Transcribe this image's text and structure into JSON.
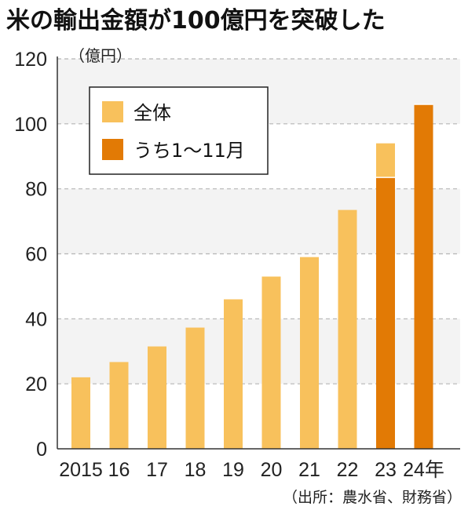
{
  "chart_data": {
    "type": "bar",
    "title": "米の輸出金額が100億円を突破した",
    "y_unit": "（億円）",
    "categories": [
      "2015",
      "16",
      "17",
      "18",
      "19",
      "20",
      "21",
      "22",
      "23",
      "24年"
    ],
    "series": [
      {
        "name": "全体",
        "color": "#f8c15c",
        "values": [
          22,
          26.7,
          31.5,
          37.3,
          46,
          53,
          59,
          73.5,
          94,
          null
        ]
      },
      {
        "name": "うち1〜11月",
        "color": "#e27a05",
        "values": [
          null,
          null,
          null,
          null,
          null,
          null,
          null,
          null,
          83.5,
          106
        ]
      }
    ],
    "ylim": [
      0,
      120
    ],
    "yticks": [
      0,
      20,
      40,
      60,
      80,
      100,
      120
    ],
    "grid": true,
    "legend_position": "top-left",
    "source": "（出所：農水省、財務省）"
  }
}
